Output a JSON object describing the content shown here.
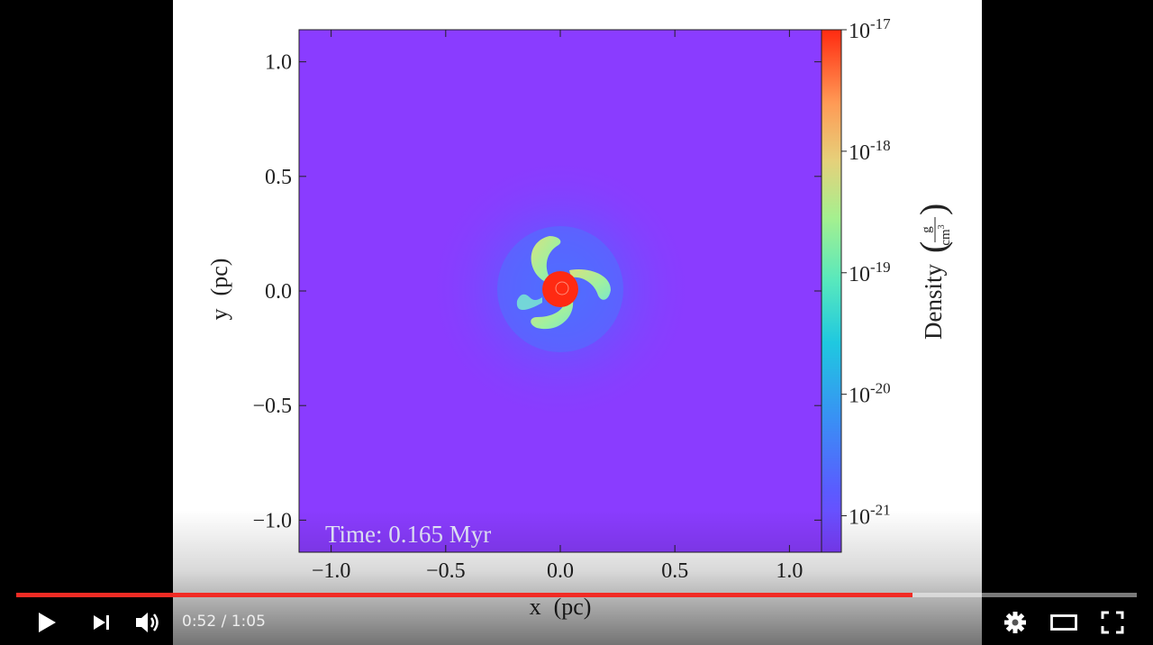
{
  "player": {
    "current_time": "0:52",
    "separator": " / ",
    "duration": "1:05",
    "progress_fraction": 0.8,
    "accent": "#f12b24",
    "icons": [
      "play-icon",
      "next-icon",
      "volume-icon",
      "settings-icon",
      "theater-mode-icon",
      "fullscreen-icon"
    ]
  },
  "figure": {
    "time_label": "Time: 0.165 Myr",
    "x_axis": {
      "label_var": "x",
      "label_unit": "(pc)",
      "ticks": [
        "−1.0",
        "−0.5",
        "0.0",
        "0.5",
        "1.0"
      ],
      "tick_values": [
        -1.0,
        -0.5,
        0.0,
        0.5,
        1.0
      ],
      "range": [
        -1.14,
        1.14
      ]
    },
    "y_axis": {
      "label_var": "y",
      "label_unit": "(pc)",
      "ticks": [
        "1.0",
        "0.5",
        "0.0",
        "−0.5",
        "−1.0"
      ],
      "tick_values": [
        1.0,
        0.5,
        0.0,
        -0.5,
        -1.0
      ],
      "range": [
        -1.14,
        1.14
      ]
    },
    "colorbar": {
      "label": "Density",
      "unit_num": "g",
      "unit_den": "cm",
      "unit_den_exp": "3",
      "ticks": [
        {
          "base": "10",
          "exp": "-17",
          "value": 1e-17
        },
        {
          "base": "10",
          "exp": "-18",
          "value": 1e-18
        },
        {
          "base": "10",
          "exp": "-19",
          "value": 1e-19
        },
        {
          "base": "10",
          "exp": "-20",
          "value": 1e-20
        },
        {
          "base": "10",
          "exp": "-21",
          "value": 1e-21
        }
      ],
      "scale": "log",
      "colormap": "rainbow"
    },
    "background_color": "#8a3cff"
  }
}
